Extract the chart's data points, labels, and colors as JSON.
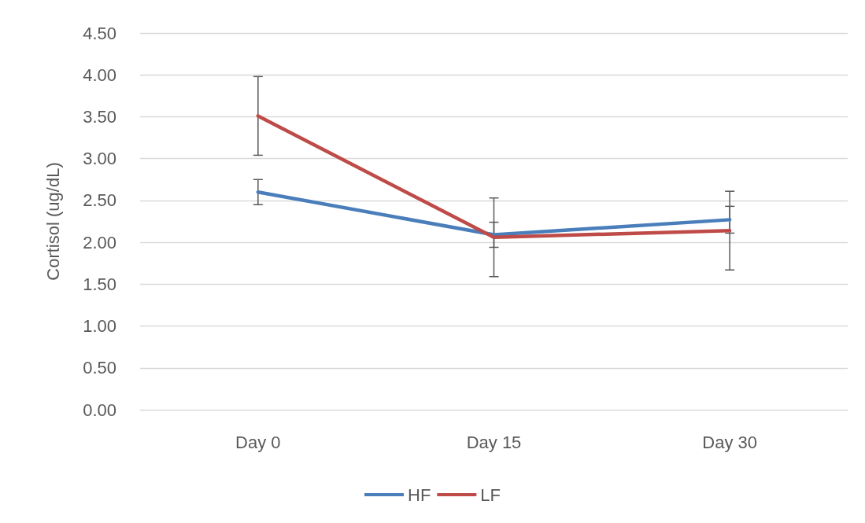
{
  "chart_data": {
    "type": "line",
    "ylabel": "Cortisol (ug/dL)",
    "categories": [
      "Day 0",
      "Day 15",
      "Day 30"
    ],
    "series": [
      {
        "name": "HF",
        "color": "#4a7ebb",
        "values": [
          2.6,
          2.09,
          2.27
        ],
        "errors": [
          0.15,
          0.15,
          0.16
        ]
      },
      {
        "name": "LF",
        "color": "#be4b48",
        "values": [
          3.51,
          2.06,
          2.14
        ],
        "errors": [
          0.47,
          0.47,
          0.47
        ]
      }
    ],
    "ylim": [
      0,
      4.5
    ],
    "yticks": [
      {
        "value": 0,
        "label": "0.00"
      },
      {
        "value": 0.5,
        "label": "0.50"
      },
      {
        "value": 1,
        "label": "1.00"
      },
      {
        "value": 1.5,
        "label": "1.50"
      },
      {
        "value": 2,
        "label": "2.00"
      },
      {
        "value": 2.5,
        "label": "2.50"
      },
      {
        "value": 3,
        "label": "3.00"
      },
      {
        "value": 3.5,
        "label": "3.50"
      },
      {
        "value": 4,
        "label": "4.00"
      },
      {
        "value": 4.5,
        "label": "4.50"
      }
    ],
    "grid": "y",
    "legend": "bottom",
    "marker": "none",
    "line_style": "solid"
  }
}
